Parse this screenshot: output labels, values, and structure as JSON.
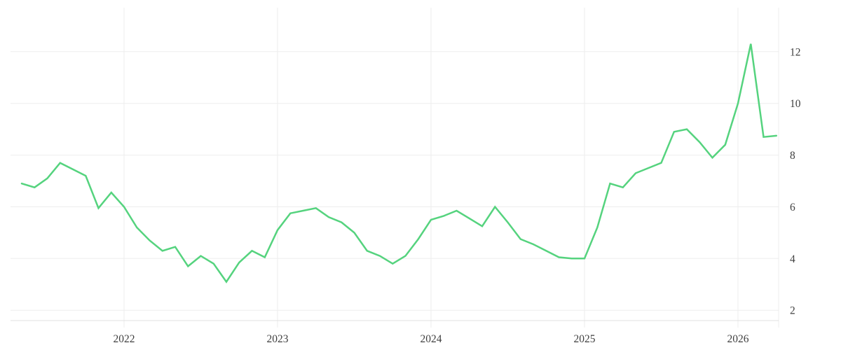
{
  "page": {
    "background": "#ffffff"
  },
  "chart_data": {
    "type": "line",
    "title": "",
    "frequency": "monthly",
    "x_start": "2021-05",
    "x_end": "2026-04",
    "values": [
      6.9,
      6.75,
      7.1,
      7.7,
      7.45,
      7.2,
      5.95,
      6.55,
      6.0,
      5.2,
      4.7,
      4.3,
      4.45,
      3.7,
      4.1,
      3.8,
      3.1,
      3.85,
      4.3,
      4.05,
      5.1,
      5.75,
      5.85,
      5.95,
      5.6,
      5.4,
      5.0,
      4.3,
      4.1,
      3.8,
      4.1,
      4.75,
      5.5,
      5.65,
      5.85,
      5.55,
      5.25,
      6.0,
      5.4,
      4.75,
      4.55,
      4.3,
      4.05,
      4.0,
      4.0,
      5.2,
      6.9,
      6.75,
      7.3,
      7.5,
      7.7,
      8.9,
      9.0,
      8.5,
      7.9,
      8.4,
      10.0,
      12.3,
      8.7,
      8.75
    ],
    "x_tick_labels": [
      "2022",
      "2023",
      "2024",
      "2025",
      "2026"
    ],
    "y_tick_labels": [
      "2",
      "4",
      "6",
      "8",
      "10",
      "12"
    ],
    "y_tick_values": [
      2,
      4,
      6,
      8,
      10,
      12
    ],
    "ylim": [
      1.6,
      13.7
    ],
    "grid": true,
    "legend": "none",
    "y_axis_side": "right",
    "colors": {
      "line": "#55d37e",
      "grid": "#ededed",
      "axis_line": "#e0e0e0",
      "tick_label": "#3f3f3f",
      "background": "#ffffff"
    }
  }
}
